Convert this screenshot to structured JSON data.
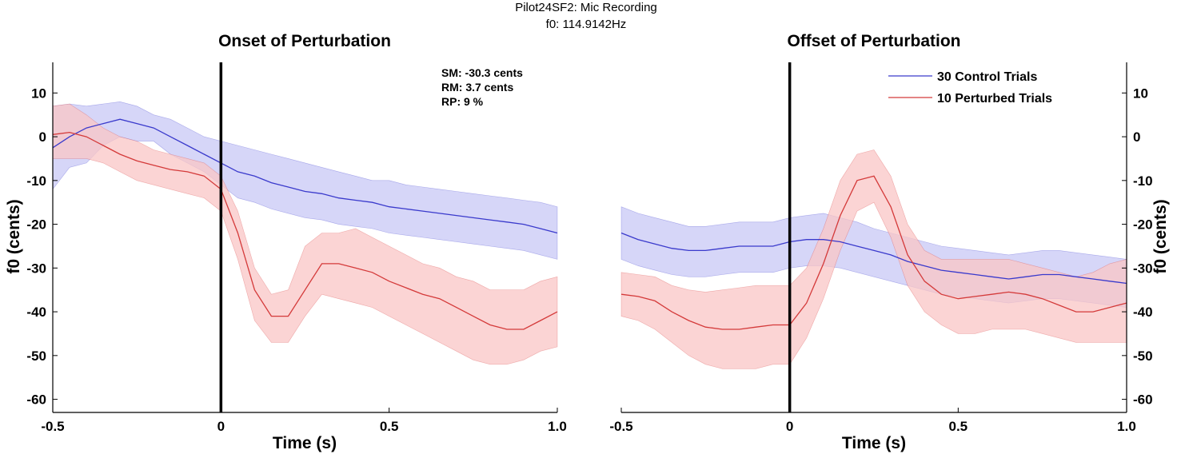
{
  "figure": {
    "title_line1": "Pilot24SF2: Mic Recording",
    "title_line2": "f0: 114.9142Hz"
  },
  "colors": {
    "control_line": "#3a3acc",
    "control_band": "#c8c8f5",
    "perturbed_line": "#d43a3a",
    "perturbed_band": "#f9c6c6",
    "marker": "#000000"
  },
  "chart_data": [
    {
      "type": "line",
      "title": "Onset of Perturbation",
      "xlabel": "Time (s)",
      "ylabel": "f0 (cents)",
      "xlim": [
        -0.5,
        1.0
      ],
      "ylim": [
        -63,
        17
      ],
      "xticks": [
        -0.5,
        0,
        0.5,
        1.0
      ],
      "xtick_labels": [
        "-0.5",
        "0",
        "0.5",
        "1.0"
      ],
      "yticks": [
        10,
        0,
        -10,
        -20,
        -30,
        -40,
        -50,
        -60
      ],
      "ytick_labels": [
        "10",
        "0",
        "-10",
        "-20",
        "-30",
        "-40",
        "-50",
        "-60"
      ],
      "yaxis_side": "left",
      "marker_x": 0,
      "annotations": [
        "SM: -30.3 cents",
        "RM: 3.7 cents",
        "RP: 9 %"
      ],
      "series": [
        {
          "name": "30 Control Trials",
          "color": "#3a3acc",
          "band_color": "#c8c8f5",
          "x": [
            -0.5,
            -0.45,
            -0.4,
            -0.35,
            -0.3,
            -0.25,
            -0.2,
            -0.15,
            -0.1,
            -0.05,
            0,
            0.05,
            0.1,
            0.15,
            0.2,
            0.25,
            0.3,
            0.35,
            0.4,
            0.45,
            0.5,
            0.55,
            0.6,
            0.65,
            0.7,
            0.75,
            0.8,
            0.85,
            0.9,
            0.95,
            1.0
          ],
          "y": [
            -2.5,
            0,
            2,
            3,
            4,
            3,
            2,
            0,
            -2,
            -4,
            -6,
            -8,
            -9,
            -10.5,
            -11.5,
            -12.5,
            -13,
            -14,
            -14.5,
            -15,
            -16,
            -16.5,
            -17,
            -17.5,
            -18,
            -18.5,
            -19,
            -19.5,
            -20,
            -21,
            -22
          ],
          "upper": [
            7,
            7.5,
            7,
            7.5,
            8,
            7,
            5,
            4,
            2,
            0,
            -1,
            -2,
            -3,
            -4,
            -5,
            -6,
            -7,
            -8,
            -9,
            -10,
            -10,
            -11,
            -11.5,
            -12,
            -12.5,
            -13,
            -13.5,
            -14,
            -14.5,
            -15,
            -16
          ],
          "lower": [
            -12,
            -7,
            -6,
            -2,
            0,
            -1,
            -1,
            -4,
            -6,
            -8,
            -11,
            -14,
            -15,
            -16.5,
            -17.5,
            -18.5,
            -19,
            -20,
            -20.5,
            -21,
            -22,
            -22.5,
            -23,
            -23.5,
            -24,
            -24.5,
            -25,
            -25.5,
            -26,
            -27,
            -28
          ]
        },
        {
          "name": "10 Perturbed Trials",
          "color": "#d43a3a",
          "band_color": "#f9c6c6",
          "x": [
            -0.5,
            -0.45,
            -0.4,
            -0.35,
            -0.3,
            -0.25,
            -0.2,
            -0.15,
            -0.1,
            -0.05,
            0,
            0.05,
            0.1,
            0.15,
            0.2,
            0.25,
            0.3,
            0.35,
            0.4,
            0.45,
            0.5,
            0.55,
            0.6,
            0.65,
            0.7,
            0.75,
            0.8,
            0.85,
            0.9,
            0.95,
            1.0
          ],
          "y": [
            0.5,
            1,
            0,
            -2,
            -4,
            -5.5,
            -6.5,
            -7.5,
            -8,
            -9,
            -12,
            -22,
            -35,
            -41,
            -41,
            -35,
            -29,
            -29,
            -30,
            -31,
            -33,
            -34.5,
            -36,
            -37,
            -39,
            -41,
            -43,
            -44,
            -44,
            -42,
            -40
          ],
          "upper": [
            7,
            7.5,
            5,
            2,
            0,
            -1,
            -3,
            -4,
            -5,
            -6,
            -9,
            -17,
            -30,
            -36,
            -35,
            -25,
            -22,
            -22,
            -21,
            -23,
            -25,
            -27,
            -29,
            -30,
            -32,
            -33,
            -35,
            -35,
            -35,
            -33,
            -32
          ],
          "lower": [
            -5,
            -5,
            -5,
            -6,
            -8,
            -10,
            -11,
            -12,
            -13,
            -14,
            -17,
            -28,
            -42,
            -47,
            -47,
            -41,
            -36,
            -37,
            -38,
            -39,
            -41,
            -43,
            -45,
            -47,
            -49,
            -51,
            -52,
            -52,
            -51,
            -49,
            -48
          ]
        }
      ]
    },
    {
      "type": "line",
      "title": "Offset of Perturbation",
      "xlabel": "Time (s)",
      "ylabel": "f0 (cents)",
      "xlim": [
        -0.5,
        1.0
      ],
      "ylim": [
        -63,
        17
      ],
      "xticks": [
        -0.5,
        0,
        0.5,
        1.0
      ],
      "xtick_labels": [
        "-0.5",
        "0",
        "0.5",
        "1.0"
      ],
      "yticks": [
        10,
        0,
        -10,
        -20,
        -30,
        -40,
        -50,
        -60
      ],
      "ytick_labels": [
        "10",
        "0",
        "-10",
        "-20",
        "-30",
        "-40",
        "-50",
        "-60"
      ],
      "yaxis_side": "right",
      "marker_x": 0,
      "legend_position": "top-right",
      "series": [
        {
          "name": "30 Control Trials",
          "color": "#3a3acc",
          "band_color": "#c8c8f5",
          "x": [
            -0.5,
            -0.45,
            -0.4,
            -0.35,
            -0.3,
            -0.25,
            -0.2,
            -0.15,
            -0.1,
            -0.05,
            0,
            0.05,
            0.1,
            0.15,
            0.2,
            0.25,
            0.3,
            0.35,
            0.4,
            0.45,
            0.5,
            0.55,
            0.6,
            0.65,
            0.7,
            0.75,
            0.8,
            0.85,
            0.9,
            0.95,
            1.0
          ],
          "y": [
            -22,
            -23.5,
            -24.5,
            -25.5,
            -26,
            -26,
            -25.5,
            -25,
            -25,
            -25,
            -24,
            -23.5,
            -23.5,
            -24,
            -25,
            -26,
            -27,
            -28.5,
            -29.5,
            -30.5,
            -31,
            -31.5,
            -32,
            -32.5,
            -32,
            -31.5,
            -31.5,
            -32,
            -32.5,
            -33,
            -33.5
          ],
          "upper": [
            -16,
            -17.5,
            -18.5,
            -19.5,
            -20.5,
            -20.5,
            -20,
            -19.5,
            -19.5,
            -19.5,
            -18.5,
            -18,
            -17.5,
            -18.5,
            -19.5,
            -21,
            -22,
            -23,
            -24,
            -25,
            -25.5,
            -26,
            -26.5,
            -27,
            -26.5,
            -26,
            -26,
            -26.5,
            -27,
            -27.5,
            -28
          ],
          "lower": [
            -28,
            -29.5,
            -30.5,
            -31.5,
            -32,
            -32,
            -31.5,
            -31,
            -31,
            -31,
            -30,
            -29.5,
            -29.5,
            -30,
            -31,
            -32,
            -33,
            -34,
            -35,
            -36,
            -36.5,
            -37,
            -37.5,
            -38,
            -37.5,
            -37,
            -37,
            -37.5,
            -38,
            -38.5,
            -39
          ]
        },
        {
          "name": "10 Perturbed Trials",
          "color": "#d43a3a",
          "band_color": "#f9c6c6",
          "x": [
            -0.5,
            -0.45,
            -0.4,
            -0.35,
            -0.3,
            -0.25,
            -0.2,
            -0.15,
            -0.1,
            -0.05,
            0,
            0.05,
            0.1,
            0.15,
            0.2,
            0.25,
            0.3,
            0.35,
            0.4,
            0.45,
            0.5,
            0.55,
            0.6,
            0.65,
            0.7,
            0.75,
            0.8,
            0.85,
            0.9,
            0.95,
            1.0
          ],
          "y": [
            -36,
            -36.5,
            -37.5,
            -40,
            -42,
            -43.5,
            -44,
            -44,
            -43.5,
            -43,
            -43,
            -38,
            -29,
            -18,
            -10,
            -9,
            -16,
            -27,
            -33,
            -36,
            -37,
            -36.5,
            -36,
            -35.5,
            -36,
            -37,
            -38.5,
            -40,
            -40,
            -39,
            -38
          ],
          "upper": [
            -31,
            -31.5,
            -32,
            -34,
            -35,
            -35.5,
            -35,
            -34.5,
            -34,
            -34,
            -34,
            -30,
            -21,
            -10,
            -4,
            -3,
            -9,
            -20,
            -26,
            -28,
            -28,
            -28,
            -28,
            -28,
            -29,
            -30,
            -31,
            -32,
            -31,
            -29,
            -28
          ],
          "lower": [
            -41,
            -42,
            -44,
            -47,
            -50,
            -52,
            -53,
            -53,
            -53,
            -52,
            -52,
            -46,
            -37,
            -26,
            -17,
            -15,
            -23,
            -34,
            -40,
            -43,
            -45,
            -45,
            -44,
            -44,
            -44,
            -45,
            -46,
            -47,
            -47,
            -47,
            -47
          ]
        }
      ]
    }
  ]
}
